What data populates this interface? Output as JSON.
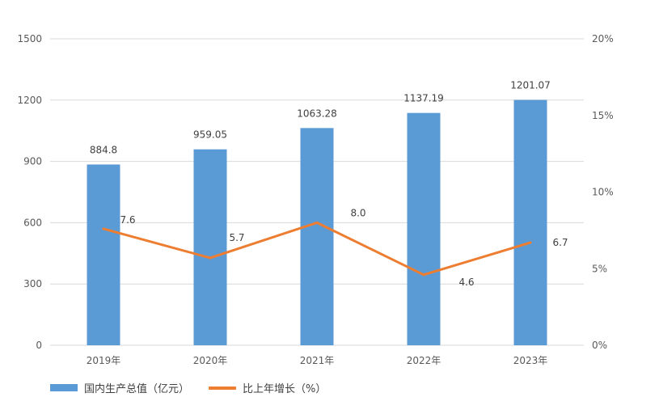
{
  "chart_data": {
    "type": "bar",
    "categories": [
      "2019年",
      "2020年",
      "2021年",
      "2022年",
      "2023年"
    ],
    "series": [
      {
        "name": "国内生产总值（亿元）",
        "type": "bar",
        "axis": "left",
        "values": [
          884.8,
          959.05,
          1063.28,
          1137.19,
          1201.07
        ],
        "labels": [
          "884.8",
          "959.05",
          "1063.28",
          "1137.19",
          "1201.07"
        ],
        "color": "#5B9BD5"
      },
      {
        "name": "比上年增长（%）",
        "type": "line",
        "axis": "right",
        "values": [
          7.6,
          5.7,
          8.0,
          4.6,
          6.7
        ],
        "labels": [
          "7.6",
          "5.7",
          "8.0",
          "4.6",
          "6.7"
        ],
        "color": "#ED7D31"
      }
    ],
    "y_left": {
      "ylim": [
        0,
        1500
      ],
      "ticks": [
        "0",
        "300",
        "600",
        "900",
        "1200",
        "1500"
      ]
    },
    "y_right": {
      "ylim": [
        0,
        20
      ],
      "ticks": [
        "0%",
        "5%",
        "10%",
        "15%",
        "20%"
      ]
    },
    "grid": true,
    "legend_position": "bottom-left"
  }
}
